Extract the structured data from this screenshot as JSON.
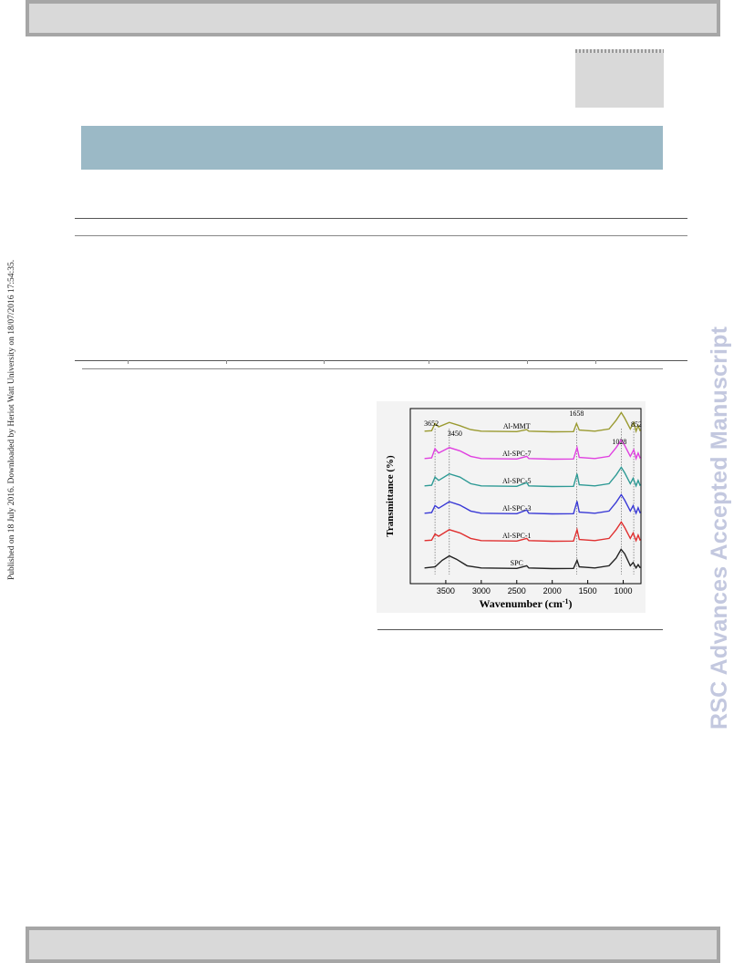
{
  "side_note": "Published on 18 July 2016. Downloaded by Heriot Watt University on 18/07/2016 17:54:35.",
  "watermark": "RSC Advances Accepted Manuscript",
  "figure": {
    "chart_data": {
      "type": "line",
      "xlabel": "Wavenumber (cm-1)",
      "xlabel_main": "Wavenumber (cm",
      "xlabel_sup": "-1",
      "xlabel_close": ")",
      "ylabel": "Transmittance (%)",
      "xlim": [
        4000,
        750
      ],
      "x_reversed": true,
      "x_ticks": [
        {
          "value": 3500,
          "label": "3500"
        },
        {
          "value": 3000,
          "label": "3000"
        },
        {
          "value": 2500,
          "label": "2500"
        },
        {
          "value": 2000,
          "label": "2000"
        },
        {
          "value": 1500,
          "label": "1500"
        },
        {
          "value": 1000,
          "label": "1000"
        }
      ],
      "y_ticks_shown": false,
      "series": [
        {
          "name": "SPC",
          "color": "#222222",
          "offset": 0,
          "points": [
            [
              3800,
              0.95
            ],
            [
              3650,
              0.9
            ],
            [
              3550,
              0.6
            ],
            [
              3450,
              0.4
            ],
            [
              3350,
              0.55
            ],
            [
              3200,
              0.85
            ],
            [
              3000,
              0.95
            ],
            [
              2500,
              0.97
            ],
            [
              2360,
              0.85
            ],
            [
              2330,
              0.95
            ],
            [
              2000,
              0.98
            ],
            [
              1700,
              0.97
            ],
            [
              1650,
              0.6
            ],
            [
              1620,
              0.9
            ],
            [
              1400,
              0.95
            ],
            [
              1200,
              0.85
            ],
            [
              1100,
              0.5
            ],
            [
              1030,
              0.1
            ],
            [
              980,
              0.3
            ],
            [
              900,
              0.85
            ],
            [
              860,
              0.7
            ],
            [
              820,
              0.95
            ],
            [
              790,
              0.8
            ],
            [
              760,
              0.95
            ]
          ]
        },
        {
          "name": "Al-SPC-1",
          "color": "#e03030",
          "offset": 1,
          "points": [
            [
              3800,
              0.95
            ],
            [
              3700,
              0.93
            ],
            [
              3652,
              0.65
            ],
            [
              3600,
              0.75
            ],
            [
              3450,
              0.45
            ],
            [
              3300,
              0.6
            ],
            [
              3150,
              0.85
            ],
            [
              3000,
              0.95
            ],
            [
              2500,
              0.97
            ],
            [
              2360,
              0.85
            ],
            [
              2330,
              0.95
            ],
            [
              2000,
              0.98
            ],
            [
              1700,
              0.97
            ],
            [
              1650,
              0.45
            ],
            [
              1620,
              0.9
            ],
            [
              1400,
              0.95
            ],
            [
              1200,
              0.85
            ],
            [
              1100,
              0.45
            ],
            [
              1028,
              0.1
            ],
            [
              980,
              0.35
            ],
            [
              900,
              0.85
            ],
            [
              860,
              0.6
            ],
            [
              820,
              0.95
            ],
            [
              790,
              0.7
            ],
            [
              760,
              0.95
            ]
          ]
        },
        {
          "name": "Al-SPC-3",
          "color": "#3a3ad6",
          "offset": 2,
          "points": [
            [
              3800,
              0.95
            ],
            [
              3700,
              0.92
            ],
            [
              3652,
              0.6
            ],
            [
              3600,
              0.72
            ],
            [
              3450,
              0.42
            ],
            [
              3300,
              0.58
            ],
            [
              3150,
              0.85
            ],
            [
              3000,
              0.95
            ],
            [
              2500,
              0.97
            ],
            [
              2360,
              0.8
            ],
            [
              2330,
              0.95
            ],
            [
              2000,
              0.98
            ],
            [
              1700,
              0.97
            ],
            [
              1650,
              0.4
            ],
            [
              1620,
              0.9
            ],
            [
              1400,
              0.95
            ],
            [
              1200,
              0.85
            ],
            [
              1100,
              0.45
            ],
            [
              1028,
              0.1
            ],
            [
              980,
              0.35
            ],
            [
              900,
              0.85
            ],
            [
              860,
              0.6
            ],
            [
              820,
              0.95
            ],
            [
              790,
              0.7
            ],
            [
              760,
              0.95
            ]
          ]
        },
        {
          "name": "Al-SPC-5",
          "color": "#2e9a95",
          "offset": 3,
          "points": [
            [
              3800,
              0.95
            ],
            [
              3700,
              0.92
            ],
            [
              3652,
              0.55
            ],
            [
              3600,
              0.7
            ],
            [
              3450,
              0.4
            ],
            [
              3300,
              0.55
            ],
            [
              3150,
              0.85
            ],
            [
              3000,
              0.95
            ],
            [
              2500,
              0.97
            ],
            [
              2360,
              0.8
            ],
            [
              2330,
              0.95
            ],
            [
              2000,
              0.98
            ],
            [
              1700,
              0.97
            ],
            [
              1650,
              0.4
            ],
            [
              1620,
              0.9
            ],
            [
              1400,
              0.95
            ],
            [
              1200,
              0.85
            ],
            [
              1100,
              0.45
            ],
            [
              1028,
              0.1
            ],
            [
              980,
              0.35
            ],
            [
              900,
              0.85
            ],
            [
              860,
              0.6
            ],
            [
              820,
              0.95
            ],
            [
              790,
              0.7
            ],
            [
              760,
              0.95
            ]
          ]
        },
        {
          "name": "Al-SPC-7",
          "color": "#e040e0",
          "offset": 4,
          "points": [
            [
              3800,
              0.95
            ],
            [
              3700,
              0.92
            ],
            [
              3652,
              0.5
            ],
            [
              3600,
              0.7
            ],
            [
              3450,
              0.45
            ],
            [
              3300,
              0.6
            ],
            [
              3150,
              0.85
            ],
            [
              3000,
              0.95
            ],
            [
              2500,
              0.97
            ],
            [
              2360,
              0.85
            ],
            [
              2330,
              0.95
            ],
            [
              2000,
              0.98
            ],
            [
              1700,
              0.97
            ],
            [
              1650,
              0.45
            ],
            [
              1620,
              0.9
            ],
            [
              1400,
              0.95
            ],
            [
              1200,
              0.85
            ],
            [
              1100,
              0.45
            ],
            [
              1028,
              0.1
            ],
            [
              980,
              0.35
            ],
            [
              900,
              0.85
            ],
            [
              852,
              0.55
            ],
            [
              820,
              0.95
            ],
            [
              790,
              0.7
            ],
            [
              760,
              0.95
            ]
          ]
        },
        {
          "name": "Al-MMT",
          "color": "#9a9a30",
          "offset": 5,
          "points": [
            [
              3800,
              0.95
            ],
            [
              3700,
              0.93
            ],
            [
              3652,
              0.6
            ],
            [
              3600,
              0.75
            ],
            [
              3450,
              0.55
            ],
            [
              3300,
              0.7
            ],
            [
              3150,
              0.88
            ],
            [
              3000,
              0.95
            ],
            [
              2500,
              0.97
            ],
            [
              2360,
              0.88
            ],
            [
              2330,
              0.95
            ],
            [
              2000,
              0.98
            ],
            [
              1700,
              0.97
            ],
            [
              1658,
              0.6
            ],
            [
              1620,
              0.9
            ],
            [
              1400,
              0.95
            ],
            [
              1200,
              0.85
            ],
            [
              1100,
              0.45
            ],
            [
              1028,
              0.1
            ],
            [
              980,
              0.35
            ],
            [
              900,
              0.85
            ],
            [
              852,
              0.55
            ],
            [
              820,
              0.95
            ],
            [
              790,
              0.7
            ],
            [
              760,
              0.95
            ]
          ]
        }
      ],
      "annotations": [
        {
          "text": "3652",
          "x": 3652
        },
        {
          "text": "3450",
          "x": 3450
        },
        {
          "text": "1658",
          "x": 1658
        },
        {
          "text": "1028",
          "x": 1028
        },
        {
          "text": "852",
          "x": 852
        }
      ]
    }
  }
}
